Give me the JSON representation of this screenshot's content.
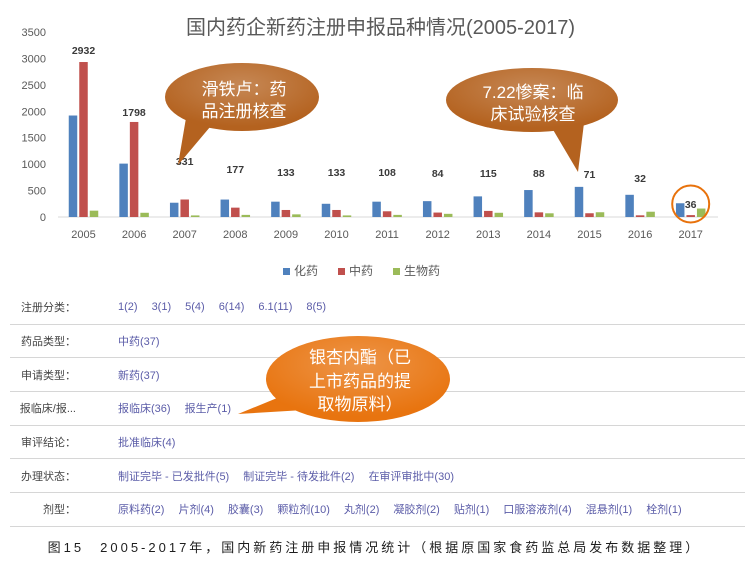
{
  "chart_data": {
    "type": "bar",
    "title": "国内药企新药注册申报品种情况(2005-2017)",
    "categories": [
      "2005",
      "2006",
      "2007",
      "2008",
      "2009",
      "2010",
      "2011",
      "2012",
      "2013",
      "2014",
      "2015",
      "2016",
      "2017"
    ],
    "series": [
      {
        "name": "化药",
        "color": "#4f81bd",
        "values": [
          1920,
          1010,
          270,
          330,
          290,
          250,
          290,
          300,
          390,
          510,
          570,
          420,
          260
        ]
      },
      {
        "name": "中药",
        "color": "#c0504d",
        "values": [
          2932,
          1798,
          331,
          177,
          133,
          133,
          108,
          84,
          115,
          88,
          71,
          32,
          36
        ],
        "data_labels": true
      },
      {
        "name": "生物药",
        "color": "#9bbb59",
        "values": [
          120,
          80,
          30,
          40,
          50,
          30,
          40,
          60,
          80,
          70,
          90,
          100,
          160
        ]
      }
    ],
    "ylim": [
      0,
      3500
    ],
    "y_ticks": [
      0,
      500,
      1000,
      1500,
      2000,
      2500,
      3000,
      3500
    ],
    "grid": false,
    "legend": "bottom",
    "highlight_category": "2017",
    "highlight_color": "#e8720c",
    "annotations": [
      {
        "lines": [
          "滑铁卢：药",
          "品注册核查"
        ],
        "color": "#b4621f"
      },
      {
        "lines": [
          "7.22惨案：临",
          "床试验核查"
        ],
        "color": "#b4621f"
      }
    ]
  },
  "callout": {
    "lines": [
      "银杏内酯（已",
      "上市药品的提",
      "取物原料）"
    ],
    "color": "#e8740f"
  },
  "filters": [
    {
      "label": "注册分类：",
      "options": [
        "1(2)",
        "3(1)",
        "5(4)",
        "6(14)",
        "6.1(11)",
        "8(5)"
      ]
    },
    {
      "label": "药品类型：",
      "options": [
        "中药(37)"
      ]
    },
    {
      "label": "申请类型：",
      "options": [
        "新药(37)"
      ]
    },
    {
      "label": "报临床/报...",
      "options": [
        "报临床(36)",
        "报生产(1)"
      ]
    },
    {
      "label": "审评结论：",
      "options": [
        "批准临床(4)"
      ]
    },
    {
      "label": "办理状态：",
      "options": [
        "制证完毕 - 已发批件(5)",
        "制证完毕 - 待发批件(2)",
        "在审评审批中(30)"
      ]
    },
    {
      "label": "剂型：",
      "options": [
        "原料药(2)",
        "片剂(4)",
        "胶囊(3)",
        "颗粒剂(10)",
        "丸剂(2)",
        "凝胶剂(2)",
        "贴剂(1)",
        "口服溶液剂(4)",
        "混悬剂(1)",
        "栓剂(1)"
      ]
    }
  ],
  "link_color": "#5b5ca8",
  "caption": "图15　2005-2017年，国内新药注册申报情况统计（根据原国家食药监总局发布数据整理）"
}
